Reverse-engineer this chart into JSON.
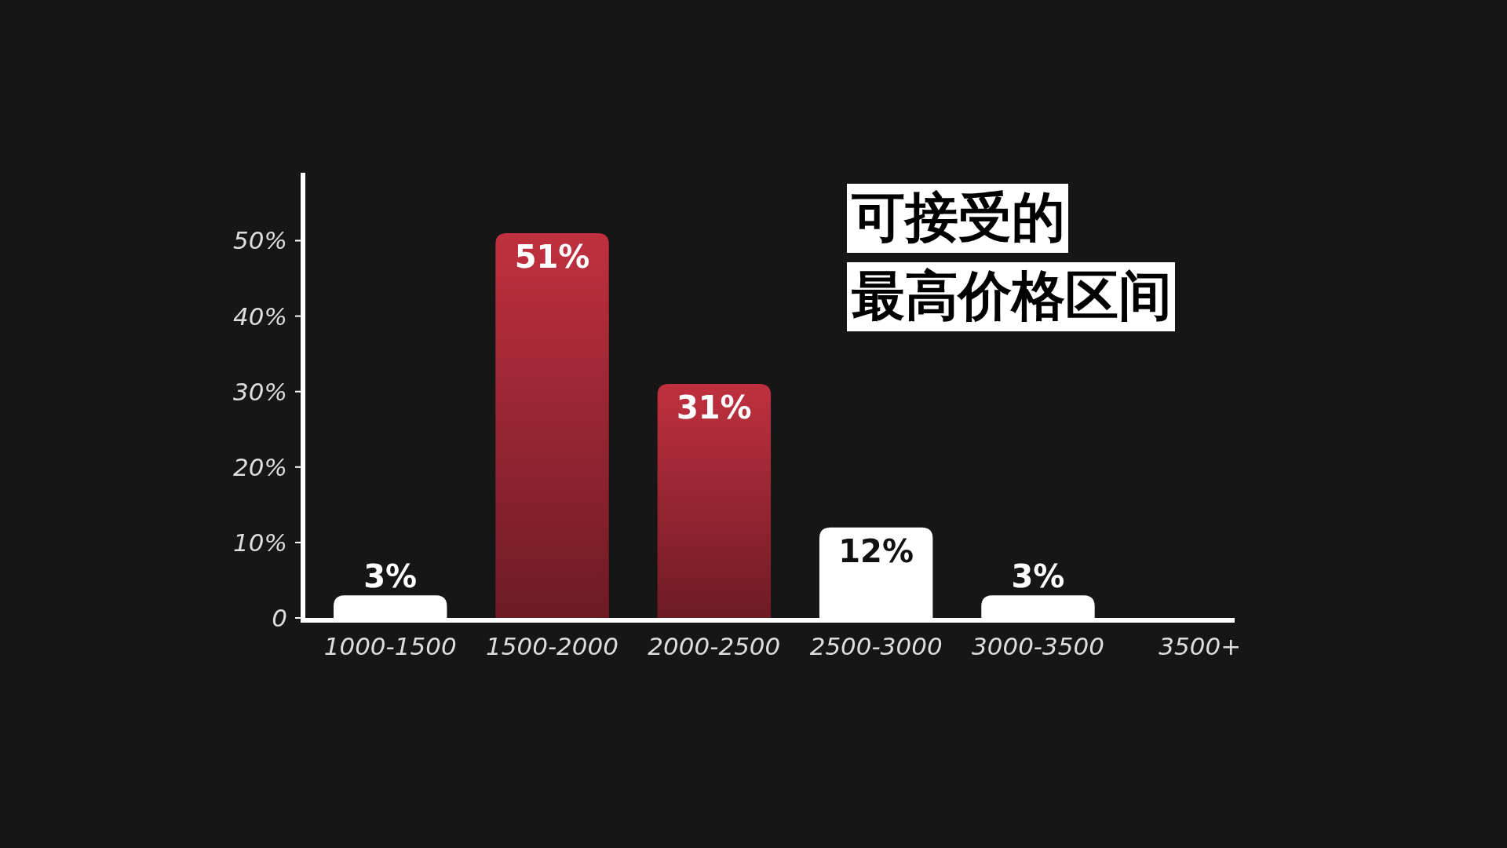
{
  "chart_data": {
    "type": "bar",
    "title": "可接受的",
    "subtitle": "最高价格区间",
    "categories": [
      "1000-1500",
      "1500-2000",
      "2000-2500",
      "2500-3000",
      "3000-3500",
      "3500+"
    ],
    "values": [
      3,
      51,
      31,
      12,
      3,
      0
    ],
    "colors": [
      "#ffffff",
      "#c0303f",
      "#c0303f",
      "#ffffff",
      "#ffffff",
      "#ffffff"
    ],
    "value_labels": [
      "3%",
      "51%",
      "31%",
      "12%",
      "3%",
      null
    ],
    "ylim": [
      0,
      59
    ],
    "yticks": [
      0,
      {
        "value": 10,
        "label": "10%"
      },
      {
        "value": 20,
        "label": "20%"
      },
      {
        "value": 30,
        "label": "30%"
      },
      {
        "value": 40,
        "label": "40%"
      },
      {
        "value": 50,
        "label": "50%"
      }
    ],
    "grid": false
  }
}
